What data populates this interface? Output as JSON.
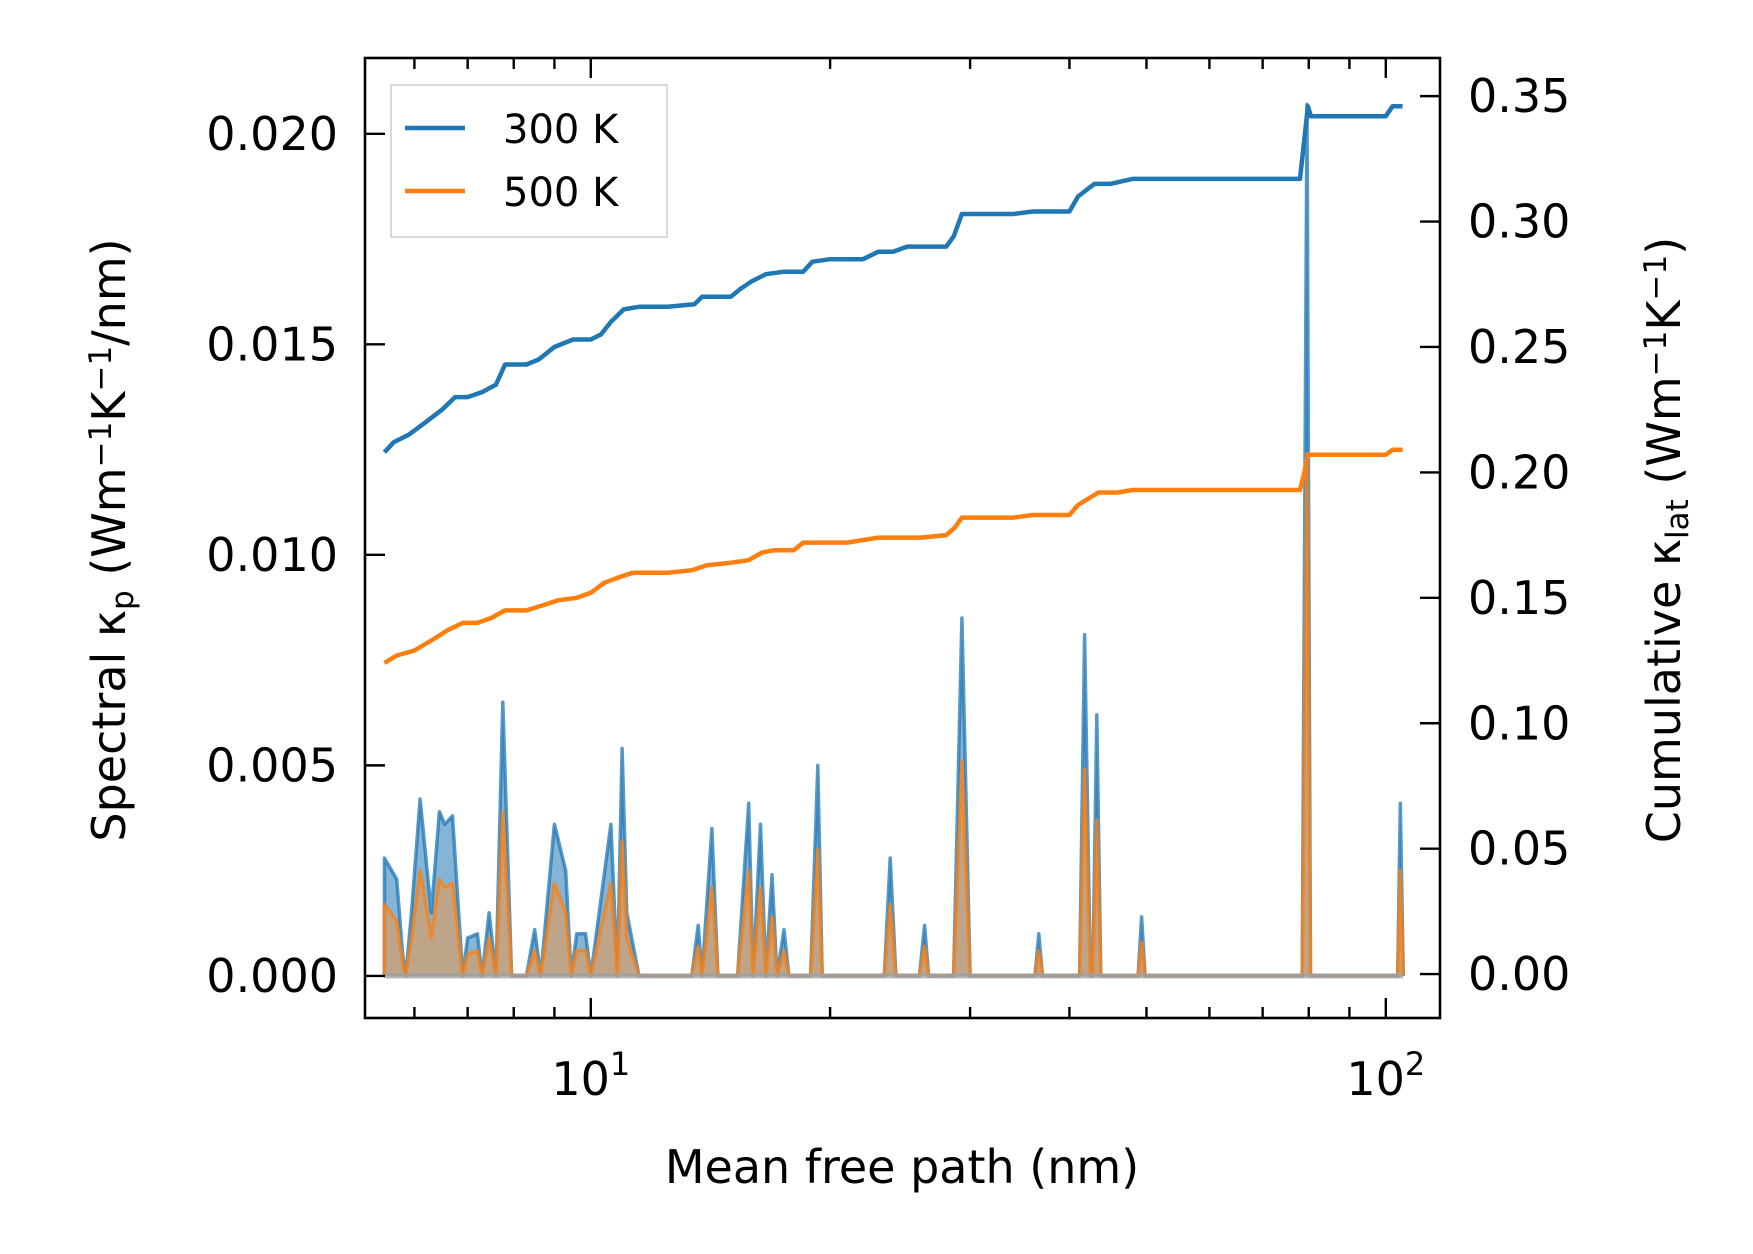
{
  "chart_data": {
    "type": "line",
    "xlabel": "Mean free path (nm)",
    "xscale": "log",
    "xlim": [
      5.2,
      117
    ],
    "x_tick_labels": [
      {
        "value": 10,
        "base": "10",
        "exp": "1"
      },
      {
        "value": 100,
        "base": "10",
        "exp": "2"
      }
    ],
    "left_axis": {
      "label_parts": [
        {
          "t": "Spectral κ",
          "s": "n"
        },
        {
          "t": "p",
          "s": "sub"
        },
        {
          "t": " (Wm",
          "s": "n"
        },
        {
          "t": "−1",
          "s": "sup"
        },
        {
          "t": "K",
          "s": "n"
        },
        {
          "t": "−1",
          "s": "sup"
        },
        {
          "t": "/nm)",
          "s": "n"
        }
      ],
      "ylim": [
        -0.001,
        0.0218
      ],
      "ticks": [
        0.0,
        0.005,
        0.01,
        0.015,
        0.02
      ],
      "tick_labels": [
        "0.000",
        "0.005",
        "0.010",
        "0.015",
        "0.020"
      ]
    },
    "right_axis": {
      "label_parts": [
        {
          "t": "Cumulative κ",
          "s": "n"
        },
        {
          "t": "lat",
          "s": "sub"
        },
        {
          "t": " (Wm",
          "s": "n"
        },
        {
          "t": "−1",
          "s": "sup"
        },
        {
          "t": "K",
          "s": "n"
        },
        {
          "t": "−1",
          "s": "sup"
        },
        {
          "t": ")",
          "s": "n"
        }
      ],
      "ylim": [
        -0.0175,
        0.3652
      ],
      "ticks": [
        0.0,
        0.05,
        0.1,
        0.15,
        0.2,
        0.25,
        0.3,
        0.35
      ],
      "tick_labels": [
        "0.00",
        "0.05",
        "0.10",
        "0.15",
        "0.20",
        "0.25",
        "0.30",
        "0.35"
      ]
    },
    "legend": {
      "position": "top-left",
      "entries": [
        "300 K",
        "500 K"
      ]
    },
    "colors": {
      "300 K": "#1f77b4",
      "500 K": "#ff7f0e",
      "fill_500": "#c4a27f"
    },
    "spectral": {
      "300 K": [
        [
          5.5,
          0.0
        ],
        [
          5.5,
          0.0028
        ],
        [
          5.7,
          0.0023
        ],
        [
          5.8,
          0.0005
        ],
        [
          5.85,
          0.0
        ],
        [
          5.95,
          0.0015
        ],
        [
          6.1,
          0.0042
        ],
        [
          6.3,
          0.0015
        ],
        [
          6.45,
          0.0039
        ],
        [
          6.55,
          0.0036
        ],
        [
          6.7,
          0.0038
        ],
        [
          6.9,
          0.0
        ],
        [
          7.0,
          0.0009
        ],
        [
          7.2,
          0.001
        ],
        [
          7.3,
          0.0
        ],
        [
          7.45,
          0.0015
        ],
        [
          7.6,
          0.0
        ],
        [
          7.75,
          0.0065
        ],
        [
          7.95,
          0.0
        ],
        [
          8.3,
          0.0
        ],
        [
          8.5,
          0.0011
        ],
        [
          8.65,
          0.0
        ],
        [
          9.0,
          0.0036
        ],
        [
          9.3,
          0.0025
        ],
        [
          9.45,
          0.0
        ],
        [
          9.6,
          0.001
        ],
        [
          9.85,
          0.001
        ],
        [
          10.0,
          0.0
        ],
        [
          10.6,
          0.0036
        ],
        [
          10.8,
          0.0
        ],
        [
          10.95,
          0.0054
        ],
        [
          11.1,
          0.0015
        ],
        [
          11.5,
          0.0
        ],
        [
          13.4,
          0.0
        ],
        [
          13.65,
          0.0012
        ],
        [
          13.8,
          0.0
        ],
        [
          14.2,
          0.0035
        ],
        [
          14.45,
          0.0
        ],
        [
          15.3,
          0.0
        ],
        [
          15.8,
          0.0041
        ],
        [
          16.0,
          0.0
        ],
        [
          16.35,
          0.0036
        ],
        [
          16.6,
          0.0
        ],
        [
          16.9,
          0.0024
        ],
        [
          17.15,
          0.0
        ],
        [
          17.5,
          0.0011
        ],
        [
          17.75,
          0.0
        ],
        [
          18.9,
          0.0
        ],
        [
          19.3,
          0.005
        ],
        [
          19.55,
          0.0
        ],
        [
          23.4,
          0.0
        ],
        [
          23.8,
          0.0028
        ],
        [
          24.2,
          0.0
        ],
        [
          25.9,
          0.0
        ],
        [
          26.3,
          0.0012
        ],
        [
          26.6,
          0.0
        ],
        [
          28.6,
          0.0
        ],
        [
          29.3,
          0.0085
        ],
        [
          30.0,
          0.0
        ],
        [
          36.2,
          0.0
        ],
        [
          36.6,
          0.001
        ],
        [
          37.0,
          0.0
        ],
        [
          41.2,
          0.0
        ],
        [
          41.8,
          0.0081
        ],
        [
          42.5,
          0.0
        ],
        [
          42.8,
          0.0
        ],
        [
          43.3,
          0.0062
        ],
        [
          43.8,
          0.0
        ],
        [
          48.8,
          0.0
        ],
        [
          49.3,
          0.0014
        ],
        [
          49.8,
          0.0
        ],
        [
          78.5,
          0.0
        ],
        [
          79.6,
          0.0207
        ],
        [
          80.4,
          0.0
        ],
        [
          81.2,
          0.0
        ],
        [
          103.5,
          0.0
        ],
        [
          104.3,
          0.0041
        ],
        [
          105.2,
          0.0
        ]
      ],
      "500 K": [
        [
          5.5,
          0.0
        ],
        [
          5.5,
          0.0017
        ],
        [
          5.7,
          0.0013
        ],
        [
          5.8,
          0.0003
        ],
        [
          5.85,
          0.0
        ],
        [
          5.95,
          0.0009
        ],
        [
          6.1,
          0.0025
        ],
        [
          6.3,
          0.0009
        ],
        [
          6.45,
          0.0023
        ],
        [
          6.55,
          0.0021
        ],
        [
          6.7,
          0.0022
        ],
        [
          6.9,
          0.0
        ],
        [
          7.0,
          0.0005
        ],
        [
          7.2,
          0.0006
        ],
        [
          7.3,
          0.0
        ],
        [
          7.45,
          0.0009
        ],
        [
          7.6,
          0.0
        ],
        [
          7.75,
          0.0039
        ],
        [
          7.95,
          0.0
        ],
        [
          8.3,
          0.0
        ],
        [
          8.5,
          0.0006
        ],
        [
          8.65,
          0.0
        ],
        [
          9.0,
          0.0022
        ],
        [
          9.3,
          0.0015
        ],
        [
          9.45,
          0.0
        ],
        [
          9.6,
          0.0006
        ],
        [
          9.85,
          0.0006
        ],
        [
          10.0,
          0.0
        ],
        [
          10.6,
          0.0022
        ],
        [
          10.8,
          0.0
        ],
        [
          10.95,
          0.0032
        ],
        [
          11.1,
          0.0009
        ],
        [
          11.5,
          0.0
        ],
        [
          13.4,
          0.0
        ],
        [
          13.65,
          0.0007
        ],
        [
          13.8,
          0.0
        ],
        [
          14.2,
          0.0021
        ],
        [
          14.45,
          0.0
        ],
        [
          15.3,
          0.0
        ],
        [
          15.8,
          0.0025
        ],
        [
          16.0,
          0.0
        ],
        [
          16.35,
          0.0021
        ],
        [
          16.6,
          0.0
        ],
        [
          16.9,
          0.0014
        ],
        [
          17.15,
          0.0
        ],
        [
          17.5,
          0.0006
        ],
        [
          17.75,
          0.0
        ],
        [
          18.9,
          0.0
        ],
        [
          19.3,
          0.003
        ],
        [
          19.55,
          0.0
        ],
        [
          23.4,
          0.0
        ],
        [
          23.8,
          0.0017
        ],
        [
          24.2,
          0.0
        ],
        [
          25.9,
          0.0
        ],
        [
          26.3,
          0.0007
        ],
        [
          26.6,
          0.0
        ],
        [
          28.6,
          0.0
        ],
        [
          29.3,
          0.0051
        ],
        [
          30.0,
          0.0
        ],
        [
          36.2,
          0.0
        ],
        [
          36.6,
          0.0006
        ],
        [
          37.0,
          0.0
        ],
        [
          41.2,
          0.0
        ],
        [
          41.8,
          0.0049
        ],
        [
          42.5,
          0.0
        ],
        [
          42.8,
          0.0
        ],
        [
          43.3,
          0.0037
        ],
        [
          43.8,
          0.0
        ],
        [
          48.8,
          0.0
        ],
        [
          49.3,
          0.0008
        ],
        [
          49.8,
          0.0
        ],
        [
          78.5,
          0.0
        ],
        [
          79.6,
          0.0124
        ],
        [
          80.4,
          0.0
        ],
        [
          81.2,
          0.0
        ],
        [
          103.5,
          0.0
        ],
        [
          104.3,
          0.0025
        ],
        [
          105.2,
          0.0
        ]
      ]
    },
    "cumulative": {
      "300 K": [
        [
          5.5,
          0.208
        ],
        [
          5.65,
          0.212
        ],
        [
          5.9,
          0.215
        ],
        [
          6.2,
          0.22
        ],
        [
          6.5,
          0.225
        ],
        [
          6.75,
          0.23
        ],
        [
          7.0,
          0.23
        ],
        [
          7.3,
          0.232
        ],
        [
          7.6,
          0.235
        ],
        [
          7.8,
          0.243
        ],
        [
          8.3,
          0.243
        ],
        [
          8.6,
          0.245
        ],
        [
          9.0,
          0.25
        ],
        [
          9.5,
          0.253
        ],
        [
          10.0,
          0.253
        ],
        [
          10.3,
          0.255
        ],
        [
          10.6,
          0.26
        ],
        [
          11.0,
          0.265
        ],
        [
          11.5,
          0.266
        ],
        [
          12.5,
          0.266
        ],
        [
          13.5,
          0.267
        ],
        [
          13.8,
          0.27
        ],
        [
          15.0,
          0.27
        ],
        [
          15.4,
          0.273
        ],
        [
          15.9,
          0.276
        ],
        [
          16.6,
          0.279
        ],
        [
          17.5,
          0.28
        ],
        [
          18.5,
          0.28
        ],
        [
          19.0,
          0.284
        ],
        [
          20.0,
          0.285
        ],
        [
          22.0,
          0.285
        ],
        [
          23.0,
          0.288
        ],
        [
          24.0,
          0.288
        ],
        [
          25.0,
          0.29
        ],
        [
          28.0,
          0.29
        ],
        [
          28.6,
          0.294
        ],
        [
          29.3,
          0.303
        ],
        [
          34.0,
          0.303
        ],
        [
          36.0,
          0.304
        ],
        [
          40.0,
          0.304
        ],
        [
          41.0,
          0.31
        ],
        [
          43.0,
          0.315
        ],
        [
          45.0,
          0.315
        ],
        [
          48.0,
          0.317
        ],
        [
          78.0,
          0.317
        ],
        [
          79.0,
          0.333
        ],
        [
          79.8,
          0.346
        ],
        [
          80.5,
          0.342
        ],
        [
          100.0,
          0.342
        ],
        [
          102.0,
          0.346
        ],
        [
          105.0,
          0.346
        ]
      ],
      "500 K": [
        [
          5.5,
          0.124
        ],
        [
          5.7,
          0.127
        ],
        [
          6.0,
          0.129
        ],
        [
          6.3,
          0.133
        ],
        [
          6.6,
          0.137
        ],
        [
          6.9,
          0.14
        ],
        [
          7.2,
          0.14
        ],
        [
          7.5,
          0.142
        ],
        [
          7.8,
          0.145
        ],
        [
          8.3,
          0.145
        ],
        [
          8.7,
          0.147
        ],
        [
          9.1,
          0.149
        ],
        [
          9.6,
          0.15
        ],
        [
          10.0,
          0.152
        ],
        [
          10.4,
          0.156
        ],
        [
          10.8,
          0.158
        ],
        [
          11.3,
          0.16
        ],
        [
          12.5,
          0.16
        ],
        [
          13.4,
          0.161
        ],
        [
          14.0,
          0.163
        ],
        [
          15.0,
          0.164
        ],
        [
          15.8,
          0.165
        ],
        [
          16.4,
          0.168
        ],
        [
          17.0,
          0.169
        ],
        [
          18.0,
          0.169
        ],
        [
          18.5,
          0.172
        ],
        [
          20.0,
          0.172
        ],
        [
          21.0,
          0.172
        ],
        [
          23.0,
          0.174
        ],
        [
          26.0,
          0.174
        ],
        [
          28.0,
          0.175
        ],
        [
          28.7,
          0.178
        ],
        [
          29.3,
          0.182
        ],
        [
          34.0,
          0.182
        ],
        [
          36.0,
          0.183
        ],
        [
          40.0,
          0.183
        ],
        [
          41.0,
          0.187
        ],
        [
          43.5,
          0.192
        ],
        [
          46.0,
          0.192
        ],
        [
          48.0,
          0.193
        ],
        [
          78.0,
          0.193
        ],
        [
          79.0,
          0.2
        ],
        [
          79.8,
          0.207
        ],
        [
          81.0,
          0.207
        ],
        [
          100.0,
          0.207
        ],
        [
          102.0,
          0.209
        ],
        [
          105.0,
          0.209
        ]
      ]
    }
  }
}
